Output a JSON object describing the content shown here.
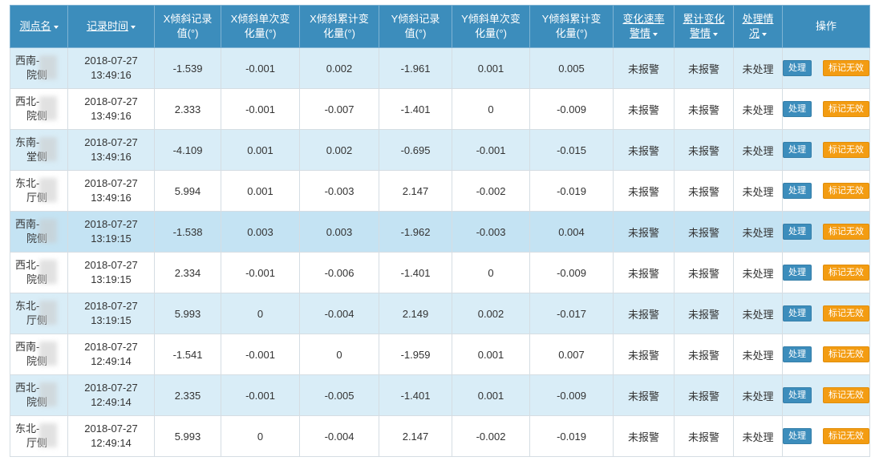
{
  "table": {
    "headers": {
      "point_name": "测点名",
      "record_time": "记录时间",
      "x_record_1": "X倾斜记录",
      "x_record_2": "值(°)",
      "x_single_1": "X倾斜单次变",
      "x_single_2": "化量(°)",
      "x_cum_1": "X倾斜累计变",
      "x_cum_2": "化量(°)",
      "y_record_1": "Y倾斜记录",
      "y_record_2": "值(°)",
      "y_single_1": "Y倾斜单次变",
      "y_single_2": "化量(°)",
      "y_cum_1": "Y倾斜累计变",
      "y_cum_2": "化量(°)",
      "rate_alarm_1": "变化速率",
      "rate_alarm_2": "警情",
      "cum_alarm_1": "累计变化",
      "cum_alarm_2": "警情",
      "status_1": "处理情",
      "status_2": "况",
      "actions": "操作"
    },
    "rows": [
      {
        "name1": "西南-",
        "name2": "院侧",
        "date": "2018-07-27",
        "time": "13:49:16",
        "x_rec": "-1.539",
        "x_single": "-0.001",
        "x_cum": "0.002",
        "y_rec": "-1.961",
        "y_single": "0.001",
        "y_cum": "0.005",
        "rate_alarm": "未报警",
        "cum_alarm": "未报警",
        "status": "未处理",
        "btn_handle": "处理",
        "btn_mark": "标记无效"
      },
      {
        "name1": "西北-",
        "name2": "院侧",
        "date": "2018-07-27",
        "time": "13:49:16",
        "x_rec": "2.333",
        "x_single": "-0.001",
        "x_cum": "-0.007",
        "y_rec": "-1.401",
        "y_single": "0",
        "y_cum": "-0.009",
        "rate_alarm": "未报警",
        "cum_alarm": "未报警",
        "status": "未处理",
        "btn_handle": "处理",
        "btn_mark": "标记无效"
      },
      {
        "name1": "东南-",
        "name2": "堂侧",
        "date": "2018-07-27",
        "time": "13:49:16",
        "x_rec": "-4.109",
        "x_single": "0.001",
        "x_cum": "0.002",
        "y_rec": "-0.695",
        "y_single": "-0.001",
        "y_cum": "-0.015",
        "rate_alarm": "未报警",
        "cum_alarm": "未报警",
        "status": "未处理",
        "btn_handle": "处理",
        "btn_mark": "标记无效"
      },
      {
        "name1": "东北-",
        "name2": "厅侧",
        "date": "2018-07-27",
        "time": "13:49:16",
        "x_rec": "5.994",
        "x_single": "0.001",
        "x_cum": "-0.003",
        "y_rec": "2.147",
        "y_single": "-0.002",
        "y_cum": "-0.019",
        "rate_alarm": "未报警",
        "cum_alarm": "未报警",
        "status": "未处理",
        "btn_handle": "处理",
        "btn_mark": "标记无效"
      },
      {
        "name1": "西南-",
        "name2": "院侧",
        "date": "2018-07-27",
        "time": "13:19:15",
        "x_rec": "-1.538",
        "x_single": "0.003",
        "x_cum": "0.003",
        "y_rec": "-1.962",
        "y_single": "-0.003",
        "y_cum": "0.004",
        "rate_alarm": "未报警",
        "cum_alarm": "未报警",
        "status": "未处理",
        "btn_handle": "处理",
        "btn_mark": "标记无效"
      },
      {
        "name1": "西北-",
        "name2": "院侧",
        "date": "2018-07-27",
        "time": "13:19:15",
        "x_rec": "2.334",
        "x_single": "-0.001",
        "x_cum": "-0.006",
        "y_rec": "-1.401",
        "y_single": "0",
        "y_cum": "-0.009",
        "rate_alarm": "未报警",
        "cum_alarm": "未报警",
        "status": "未处理",
        "btn_handle": "处理",
        "btn_mark": "标记无效"
      },
      {
        "name1": "东北-",
        "name2": "厅侧",
        "date": "2018-07-27",
        "time": "13:19:15",
        "x_rec": "5.993",
        "x_single": "0",
        "x_cum": "-0.004",
        "y_rec": "2.149",
        "y_single": "0.002",
        "y_cum": "-0.017",
        "rate_alarm": "未报警",
        "cum_alarm": "未报警",
        "status": "未处理",
        "btn_handle": "处理",
        "btn_mark": "标记无效"
      },
      {
        "name1": "西南-",
        "name2": "院侧",
        "date": "2018-07-27",
        "time": "12:49:14",
        "x_rec": "-1.541",
        "x_single": "-0.001",
        "x_cum": "0",
        "y_rec": "-1.959",
        "y_single": "0.001",
        "y_cum": "0.007",
        "rate_alarm": "未报警",
        "cum_alarm": "未报警",
        "status": "未处理",
        "btn_handle": "处理",
        "btn_mark": "标记无效"
      },
      {
        "name1": "西北-",
        "name2": "院侧",
        "date": "2018-07-27",
        "time": "12:49:14",
        "x_rec": "2.335",
        "x_single": "-0.001",
        "x_cum": "-0.005",
        "y_rec": "-1.401",
        "y_single": "0.001",
        "y_cum": "-0.009",
        "rate_alarm": "未报警",
        "cum_alarm": "未报警",
        "status": "未处理",
        "btn_handle": "处理",
        "btn_mark": "标记无效"
      },
      {
        "name1": "东北-",
        "name2": "厅侧",
        "date": "2018-07-27",
        "time": "12:49:14",
        "x_rec": "5.993",
        "x_single": "0",
        "x_cum": "-0.004",
        "y_rec": "2.147",
        "y_single": "-0.002",
        "y_cum": "-0.019",
        "rate_alarm": "未报警",
        "cum_alarm": "未报警",
        "status": "未处理",
        "btn_handle": "处理",
        "btn_mark": "标记无效"
      }
    ]
  },
  "colors": {
    "header_bg": "#3c8dbc",
    "row_stripe": "#d9edf7",
    "row_active": "#c4e3f3",
    "handle_button": "#3c8dbc",
    "mark_button": "#f39c12"
  }
}
